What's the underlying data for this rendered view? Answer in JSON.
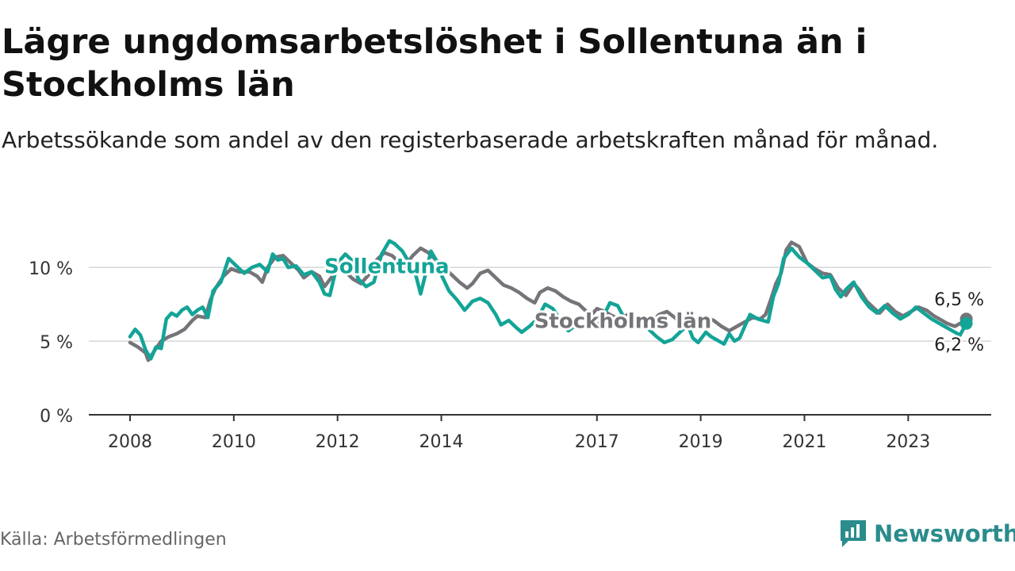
{
  "title": "Lägre ungdomsarbetslöshet i Sollentuna än i Stockholms län",
  "subtitle": "Arbetssökande som andel av den registerbaserade arbetskraften månad för månad.",
  "source": "Källa: Arbetsförmedlingen",
  "brand": "Newsworthy",
  "colors": {
    "sollentuna": "#13a497",
    "stockholm": "#757479",
    "brand": "#2a8c8c"
  },
  "chart_data": {
    "type": "line",
    "ylim": [
      0,
      12
    ],
    "xlim": [
      2008,
      2024.6
    ],
    "yticks": [
      0,
      5,
      10
    ],
    "ytick_labels": [
      "0 %",
      "5 %",
      "10 %"
    ],
    "xticks": [
      2008,
      2010,
      2012,
      2014,
      2017,
      2019,
      2021,
      2023
    ],
    "xtick_labels": [
      "2008",
      "2010",
      "2012",
      "2014",
      "2017",
      "2019",
      "2021",
      "2023"
    ],
    "series": [
      {
        "name": "Stockholms län",
        "label": "Stockholms län",
        "label_pos": [
          2017.5,
          5.9
        ],
        "end_label": "6,5 %",
        "points": [
          [
            2008.0,
            4.9
          ],
          [
            2008.15,
            4.6
          ],
          [
            2008.3,
            4.2
          ],
          [
            2008.35,
            3.7
          ],
          [
            2008.5,
            4.5
          ],
          [
            2008.6,
            5.0
          ],
          [
            2008.75,
            5.3
          ],
          [
            2008.9,
            5.5
          ],
          [
            2009.05,
            5.8
          ],
          [
            2009.2,
            6.4
          ],
          [
            2009.3,
            6.7
          ],
          [
            2009.45,
            6.6
          ],
          [
            2009.55,
            7.8
          ],
          [
            2009.65,
            8.6
          ],
          [
            2009.8,
            9.4
          ],
          [
            2009.95,
            9.9
          ],
          [
            2010.1,
            9.7
          ],
          [
            2010.3,
            9.7
          ],
          [
            2010.45,
            9.4
          ],
          [
            2010.55,
            9.0
          ],
          [
            2010.65,
            10.0
          ],
          [
            2010.8,
            10.7
          ],
          [
            2010.95,
            10.8
          ],
          [
            2011.1,
            10.3
          ],
          [
            2011.25,
            9.8
          ],
          [
            2011.35,
            9.3
          ],
          [
            2011.5,
            9.7
          ],
          [
            2011.65,
            9.4
          ],
          [
            2011.75,
            8.7
          ],
          [
            2011.9,
            9.4
          ],
          [
            2012.0,
            10.0
          ],
          [
            2012.15,
            9.7
          ],
          [
            2012.3,
            9.2
          ],
          [
            2012.45,
            8.9
          ],
          [
            2012.6,
            9.5
          ],
          [
            2012.75,
            10.5
          ],
          [
            2012.9,
            11.0
          ],
          [
            2013.05,
            10.8
          ],
          [
            2013.2,
            10.3
          ],
          [
            2013.3,
            10.1
          ],
          [
            2013.45,
            10.8
          ],
          [
            2013.6,
            11.3
          ],
          [
            2013.75,
            11.0
          ],
          [
            2013.9,
            10.5
          ],
          [
            2014.05,
            10.0
          ],
          [
            2014.2,
            9.5
          ],
          [
            2014.35,
            9.0
          ],
          [
            2014.5,
            8.6
          ],
          [
            2014.6,
            8.9
          ],
          [
            2014.75,
            9.6
          ],
          [
            2014.9,
            9.8
          ],
          [
            2015.05,
            9.3
          ],
          [
            2015.2,
            8.8
          ],
          [
            2015.35,
            8.6
          ],
          [
            2015.5,
            8.3
          ],
          [
            2015.65,
            7.9
          ],
          [
            2015.8,
            7.6
          ],
          [
            2015.9,
            8.3
          ],
          [
            2016.05,
            8.6
          ],
          [
            2016.2,
            8.4
          ],
          [
            2016.35,
            8.0
          ],
          [
            2016.5,
            7.7
          ],
          [
            2016.65,
            7.5
          ],
          [
            2016.8,
            7.0
          ],
          [
            2016.9,
            6.8
          ],
          [
            2017.0,
            7.2
          ],
          [
            2017.15,
            7.0
          ],
          [
            2017.3,
            6.7
          ],
          [
            2017.45,
            6.5
          ],
          [
            2017.6,
            6.8
          ],
          [
            2017.75,
            6.4
          ],
          [
            2017.9,
            6.1
          ],
          [
            2018.05,
            6.3
          ],
          [
            2018.2,
            6.8
          ],
          [
            2018.35,
            7.0
          ],
          [
            2018.5,
            6.6
          ],
          [
            2018.65,
            6.1
          ],
          [
            2018.8,
            5.8
          ],
          [
            2018.95,
            6.1
          ],
          [
            2019.1,
            6.6
          ],
          [
            2019.25,
            6.4
          ],
          [
            2019.4,
            6.0
          ],
          [
            2019.55,
            5.7
          ],
          [
            2019.7,
            6.0
          ],
          [
            2019.85,
            6.3
          ],
          [
            2020.0,
            6.6
          ],
          [
            2020.15,
            6.5
          ],
          [
            2020.25,
            6.8
          ],
          [
            2020.35,
            7.8
          ],
          [
            2020.45,
            8.9
          ],
          [
            2020.55,
            9.6
          ],
          [
            2020.65,
            11.2
          ],
          [
            2020.75,
            11.7
          ],
          [
            2020.9,
            11.4
          ],
          [
            2021.05,
            10.3
          ],
          [
            2021.2,
            9.9
          ],
          [
            2021.35,
            9.6
          ],
          [
            2021.5,
            9.5
          ],
          [
            2021.65,
            8.6
          ],
          [
            2021.8,
            8.1
          ],
          [
            2021.95,
            8.9
          ],
          [
            2022.05,
            8.5
          ],
          [
            2022.2,
            7.7
          ],
          [
            2022.35,
            7.2
          ],
          [
            2022.45,
            6.9
          ],
          [
            2022.6,
            7.5
          ],
          [
            2022.75,
            7.0
          ],
          [
            2022.9,
            6.7
          ],
          [
            2023.05,
            7.0
          ],
          [
            2023.2,
            7.3
          ],
          [
            2023.35,
            7.1
          ],
          [
            2023.5,
            6.7
          ],
          [
            2023.6,
            6.5
          ],
          [
            2023.75,
            6.2
          ],
          [
            2023.9,
            6.0
          ],
          [
            2024.05,
            6.3
          ],
          [
            2024.12,
            6.5
          ]
        ]
      },
      {
        "name": "Sollentuna",
        "label": "Sollentuna",
        "label_pos": [
          2012.95,
          9.6
        ],
        "end_label": "6,2 %",
        "points": [
          [
            2008.0,
            5.3
          ],
          [
            2008.1,
            5.8
          ],
          [
            2008.2,
            5.4
          ],
          [
            2008.3,
            4.4
          ],
          [
            2008.4,
            3.8
          ],
          [
            2008.5,
            4.6
          ],
          [
            2008.6,
            4.5
          ],
          [
            2008.7,
            6.5
          ],
          [
            2008.8,
            6.9
          ],
          [
            2008.9,
            6.7
          ],
          [
            2009.0,
            7.1
          ],
          [
            2009.1,
            7.3
          ],
          [
            2009.2,
            6.8
          ],
          [
            2009.3,
            7.1
          ],
          [
            2009.4,
            7.3
          ],
          [
            2009.5,
            6.6
          ],
          [
            2009.6,
            8.4
          ],
          [
            2009.75,
            9.0
          ],
          [
            2009.9,
            10.6
          ],
          [
            2010.05,
            10.1
          ],
          [
            2010.2,
            9.6
          ],
          [
            2010.35,
            10.0
          ],
          [
            2010.5,
            10.2
          ],
          [
            2010.65,
            9.7
          ],
          [
            2010.75,
            10.9
          ],
          [
            2010.85,
            10.5
          ],
          [
            2010.95,
            10.6
          ],
          [
            2011.05,
            10.0
          ],
          [
            2011.2,
            10.1
          ],
          [
            2011.35,
            9.5
          ],
          [
            2011.5,
            9.7
          ],
          [
            2011.65,
            9.0
          ],
          [
            2011.75,
            8.2
          ],
          [
            2011.85,
            8.1
          ],
          [
            2012.0,
            10.3
          ],
          [
            2012.15,
            10.9
          ],
          [
            2012.3,
            10.4
          ],
          [
            2012.4,
            9.2
          ],
          [
            2012.55,
            8.7
          ],
          [
            2012.7,
            9.0
          ],
          [
            2012.85,
            10.9
          ],
          [
            2013.0,
            11.8
          ],
          [
            2013.1,
            11.6
          ],
          [
            2013.25,
            11.1
          ],
          [
            2013.35,
            10.5
          ],
          [
            2013.5,
            9.6
          ],
          [
            2013.6,
            8.2
          ],
          [
            2013.7,
            9.6
          ],
          [
            2013.8,
            11.1
          ],
          [
            2013.9,
            10.5
          ],
          [
            2014.0,
            9.5
          ],
          [
            2014.15,
            8.4
          ],
          [
            2014.3,
            7.8
          ],
          [
            2014.45,
            7.1
          ],
          [
            2014.6,
            7.7
          ],
          [
            2014.75,
            7.9
          ],
          [
            2014.9,
            7.6
          ],
          [
            2015.05,
            6.8
          ],
          [
            2015.15,
            6.1
          ],
          [
            2015.3,
            6.4
          ],
          [
            2015.45,
            5.9
          ],
          [
            2015.55,
            5.6
          ],
          [
            2015.7,
            6.0
          ],
          [
            2015.85,
            6.5
          ],
          [
            2016.0,
            7.5
          ],
          [
            2016.15,
            7.2
          ],
          [
            2016.3,
            6.4
          ],
          [
            2016.45,
            5.7
          ],
          [
            2016.6,
            6.1
          ],
          [
            2016.75,
            5.9
          ],
          [
            2016.9,
            6.2
          ],
          [
            2017.0,
            6.0
          ],
          [
            2017.1,
            6.5
          ],
          [
            2017.25,
            7.6
          ],
          [
            2017.4,
            7.4
          ],
          [
            2017.55,
            6.4
          ],
          [
            2017.7,
            6.2
          ],
          [
            2017.85,
            6.3
          ],
          [
            2018.0,
            5.8
          ],
          [
            2018.15,
            5.3
          ],
          [
            2018.3,
            4.9
          ],
          [
            2018.45,
            5.1
          ],
          [
            2018.6,
            5.6
          ],
          [
            2018.75,
            6.1
          ],
          [
            2018.85,
            5.2
          ],
          [
            2018.95,
            4.9
          ],
          [
            2019.1,
            5.6
          ],
          [
            2019.2,
            5.3
          ],
          [
            2019.35,
            5.0
          ],
          [
            2019.45,
            4.8
          ],
          [
            2019.55,
            5.5
          ],
          [
            2019.65,
            5.0
          ],
          [
            2019.75,
            5.2
          ],
          [
            2019.85,
            6.0
          ],
          [
            2019.95,
            6.8
          ],
          [
            2020.1,
            6.5
          ],
          [
            2020.2,
            6.4
          ],
          [
            2020.3,
            6.3
          ],
          [
            2020.4,
            8.0
          ],
          [
            2020.5,
            8.9
          ],
          [
            2020.6,
            10.6
          ],
          [
            2020.75,
            11.3
          ],
          [
            2020.9,
            10.7
          ],
          [
            2021.05,
            10.3
          ],
          [
            2021.2,
            9.8
          ],
          [
            2021.35,
            9.3
          ],
          [
            2021.5,
            9.4
          ],
          [
            2021.6,
            8.5
          ],
          [
            2021.7,
            8.0
          ],
          [
            2021.8,
            8.5
          ],
          [
            2021.95,
            9.0
          ],
          [
            2022.1,
            8.0
          ],
          [
            2022.25,
            7.3
          ],
          [
            2022.4,
            6.9
          ],
          [
            2022.55,
            7.4
          ],
          [
            2022.7,
            6.9
          ],
          [
            2022.85,
            6.5
          ],
          [
            2023.0,
            6.8
          ],
          [
            2023.15,
            7.3
          ],
          [
            2023.3,
            6.9
          ],
          [
            2023.45,
            6.5
          ],
          [
            2023.55,
            6.3
          ],
          [
            2023.7,
            6.0
          ],
          [
            2023.85,
            5.7
          ],
          [
            2024.0,
            5.4
          ],
          [
            2024.12,
            6.2
          ]
        ]
      }
    ]
  }
}
